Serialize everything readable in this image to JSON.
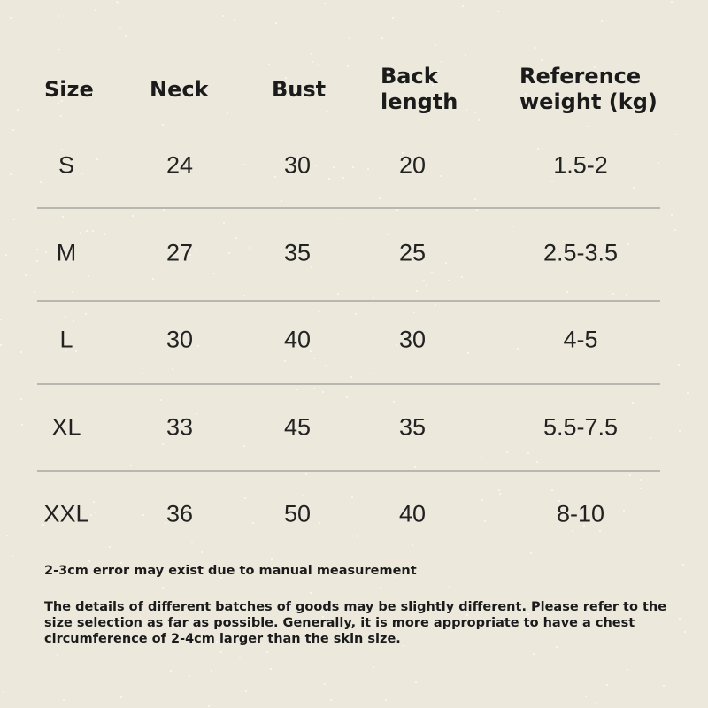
{
  "table": {
    "headers": [
      "Size",
      "Neck",
      "Bust",
      "Back length",
      "Reference weight (kg)"
    ],
    "rows": [
      [
        "S",
        "24",
        "30",
        "20",
        "1.5-2"
      ],
      [
        "M",
        "27",
        "35",
        "25",
        "2.5-3.5"
      ],
      [
        "L",
        "30",
        "40",
        "30",
        "4-5"
      ],
      [
        "XL",
        "33",
        "45",
        "35",
        "5.5-7.5"
      ],
      [
        "XXL",
        "36",
        "50",
        "40",
        "8-10"
      ]
    ]
  },
  "notes": [
    "2-3cm error may exist due to manual measurement",
    "The details of different batches of goods may be slightly different. Please refer to the size selection as far as possible. Generally, it is more appropriate to have a chest circumference of 2-4cm larger than the skin size."
  ]
}
